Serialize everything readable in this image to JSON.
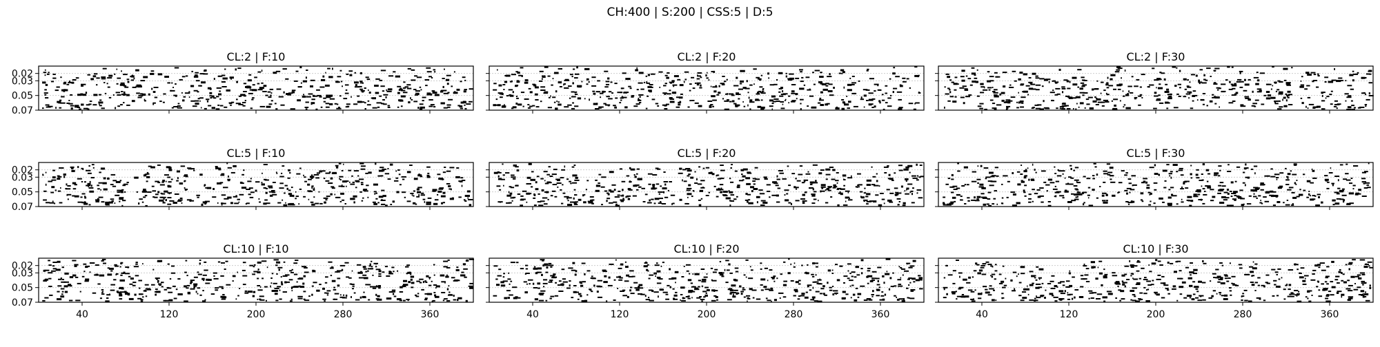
{
  "figure": {
    "suptitle": "CH:400 | S:200 | CSS:5 | D:5"
  },
  "chart_data": [
    {
      "type": "scatter",
      "title": "CL:2 | F:10",
      "series_seed": 1
    },
    {
      "type": "scatter",
      "title": "CL:2 | F:20",
      "series_seed": 2
    },
    {
      "type": "scatter",
      "title": "CL:2 | F:30",
      "series_seed": 3
    },
    {
      "type": "scatter",
      "title": "CL:5 | F:10",
      "series_seed": 4
    },
    {
      "type": "scatter",
      "title": "CL:5 | F:20",
      "series_seed": 5
    },
    {
      "type": "scatter",
      "title": "CL:5 | F:30",
      "series_seed": 6
    },
    {
      "type": "scatter",
      "title": "CL:10 | F:10",
      "series_seed": 7
    },
    {
      "type": "scatter",
      "title": "CL:10 | F:20",
      "series_seed": 8
    },
    {
      "type": "scatter",
      "title": "CL:10 | F:30",
      "series_seed": 9
    }
  ],
  "axes": {
    "x_ticks": [
      "40",
      "120",
      "200",
      "280",
      "360"
    ],
    "x_tick_values": [
      40,
      120,
      200,
      280,
      360
    ],
    "xlim": [
      0,
      400
    ],
    "y_ticks": [
      "0.02",
      "0.03",
      "0.05",
      "0.07"
    ],
    "y_tick_values": [
      0.02,
      0.03,
      0.05,
      0.07
    ],
    "ylim": [
      0.01,
      0.07
    ],
    "y_inverted": true,
    "grid": true,
    "mark_color": "#000000",
    "grid_color": "#cccccc"
  }
}
